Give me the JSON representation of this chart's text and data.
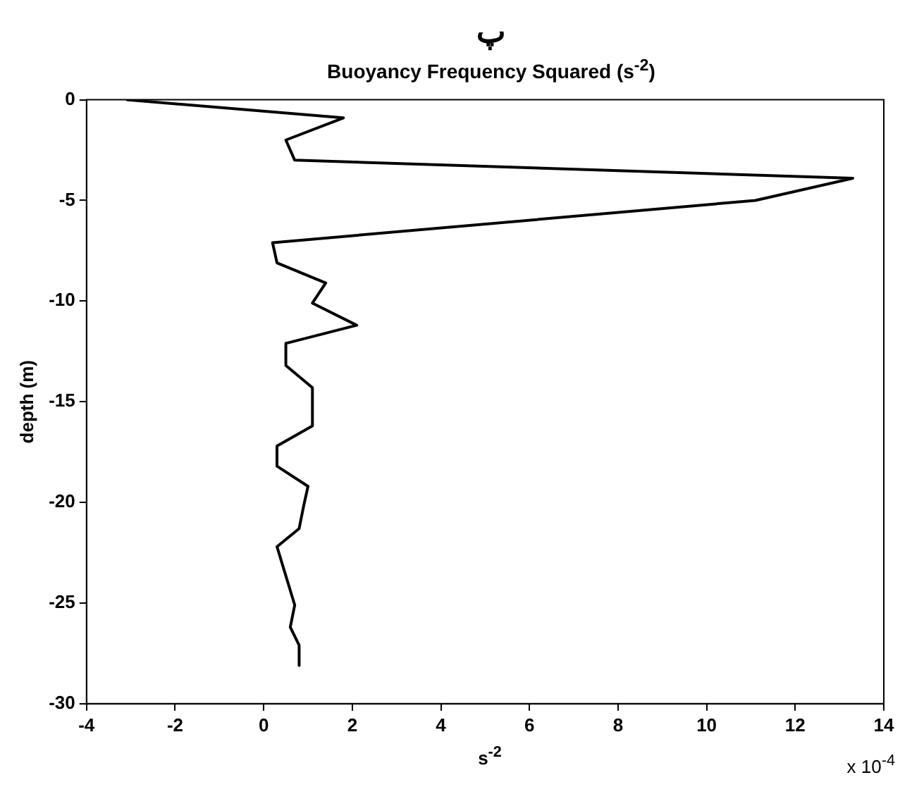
{
  "chart_data": {
    "type": "line",
    "title": "پ",
    "subtitle": "Buoyancy Frequency Squared (s$^{-2}$)",
    "xlabel": "s$^{-2}$",
    "ylabel": "depth (m)",
    "annotations": [
      "x 10$^{-4}$"
    ],
    "series": [
      {
        "color": "#000000",
        "x": [
          -3.1,
          1.8,
          0.5,
          0.7,
          13.3,
          11.1,
          0.2,
          0.3,
          1.4,
          1.1,
          2.1,
          0.5,
          0.5,
          1.1,
          1.1,
          0.3,
          0.3,
          1.0,
          0.9,
          0.8,
          0.3,
          0.7,
          0.6,
          0.8,
          0.8
        ],
        "values": [
          0,
          -0.9,
          -2.0,
          -3.0,
          -3.9,
          -5.0,
          -7.1,
          -8.1,
          -9.1,
          -10.1,
          -11.2,
          -12.1,
          -13.2,
          -14.3,
          -16.2,
          -17.2,
          -18.2,
          -19.2,
          -20.2,
          -21.3,
          -22.2,
          -25.1,
          -26.2,
          -27.1,
          -28.1
        ]
      }
    ],
    "xlim": [
      -4,
      14
    ],
    "xticks": [
      -4,
      -2,
      0,
      2,
      4,
      6,
      8,
      10,
      12,
      14
    ],
    "ylim": [
      -30,
      0
    ],
    "yticks": [
      -30,
      -25,
      -20,
      -15,
      -10,
      -5,
      0
    ],
    "grid": false,
    "legend": false,
    "marker": "none",
    "line_style": "solid"
  }
}
